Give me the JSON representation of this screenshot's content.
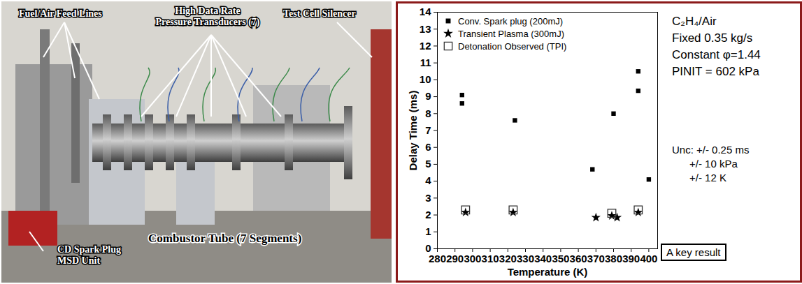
{
  "photo": {
    "labels": [
      {
        "lines": [
          "Fuel/Air Feed Lines"
        ]
      },
      {
        "lines": [
          "High Data Rate",
          "Pressure Transducers (7)"
        ]
      },
      {
        "lines": [
          "Test Cell Silencer"
        ]
      },
      {
        "lines": [
          "CD Spark Plug",
          "MSD Unit"
        ]
      },
      {
        "lines": [
          "Combustor Tube (7 Segments)"
        ]
      }
    ]
  },
  "chart_data": {
    "type": "scatter",
    "x_label": "Temperature (K)",
    "y_label": "Delay Time (ms)",
    "xlim": [
      280,
      405
    ],
    "xticks": [
      280,
      290,
      300,
      310,
      320,
      330,
      340,
      350,
      360,
      370,
      380,
      390,
      400
    ],
    "ylim": [
      0,
      14
    ],
    "yticks": [
      0,
      1,
      2,
      3,
      4,
      5,
      6,
      7,
      8,
      9,
      10,
      11,
      12,
      13,
      14
    ],
    "grid": false,
    "legend": "top-left",
    "series": [
      {
        "name": "Conv. Spark plug (200mJ)",
        "color": "#000000",
        "marker": "square",
        "x": [
          294,
          294,
          324,
          368,
          380,
          394,
          394,
          400
        ],
        "values": [
          9.1,
          8.6,
          7.6,
          4.7,
          8.0,
          10.5,
          9.35,
          4.1
        ]
      },
      {
        "name": "Transient Plasma (300mJ)",
        "color": "#000000",
        "marker": "star",
        "x": [
          296,
          323,
          370,
          379,
          382,
          394
        ],
        "values": [
          2.15,
          2.15,
          1.85,
          1.95,
          1.85,
          2.15
        ]
      },
      {
        "name": "Detonation Observed (TPI)",
        "color": "#333333",
        "marker": "open_square",
        "x": [
          296,
          323,
          379,
          394
        ],
        "values": [
          2.3,
          2.3,
          2.1,
          2.3
        ]
      }
    ],
    "annotations": [
      "C₂H₄/Air",
      "Fixed 0.35 kg/s",
      "Constant φ=1.44",
      "PINIT = 602 kPa"
    ],
    "uncertainty": [
      "Unc: +/- 0.25 ms",
      "+/- 10 kPa",
      "+/- 12 K"
    ],
    "note": "A key result"
  }
}
